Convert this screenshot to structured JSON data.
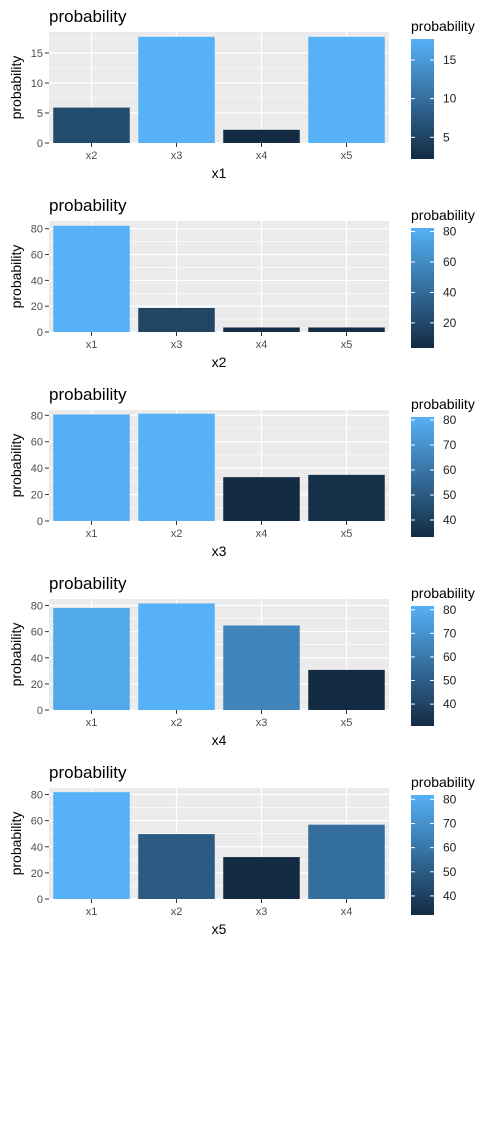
{
  "colors": {
    "panel_bg": "#EBEBEB",
    "grid": "#FFFFFF",
    "tick_text": "#4D4D4D",
    "gradient_low": "#132B43",
    "gradient_high": "#56B1F7"
  },
  "chart_data": [
    {
      "type": "bar",
      "title": "probability",
      "xlabel": "x1",
      "ylabel": "probability",
      "categories": [
        "x2",
        "x3",
        "x4",
        "x5"
      ],
      "values": [
        5.9,
        17.7,
        2.2,
        17.7
      ],
      "ylim": [
        0,
        18.5
      ],
      "yticks": [
        0,
        5,
        10,
        15
      ],
      "legend": {
        "title": "probability",
        "ticks": [
          5,
          10,
          15
        ],
        "range": [
          2.2,
          17.7
        ],
        "position": "right"
      },
      "grid": true
    },
    {
      "type": "bar",
      "title": "probability",
      "xlabel": "x2",
      "ylabel": "probability",
      "categories": [
        "x1",
        "x3",
        "x4",
        "x5"
      ],
      "values": [
        82.3,
        18.6,
        3.5,
        3.5
      ],
      "ylim": [
        0,
        86
      ],
      "yticks": [
        0,
        20,
        40,
        60,
        80
      ],
      "legend": {
        "title": "probability",
        "ticks": [
          20,
          40,
          60,
          80
        ],
        "range": [
          3.5,
          82.3
        ],
        "position": "right"
      },
      "grid": true
    },
    {
      "type": "bar",
      "title": "probability",
      "xlabel": "x3",
      "ylabel": "probability",
      "categories": [
        "x1",
        "x2",
        "x4",
        "x5"
      ],
      "values": [
        80.6,
        81.2,
        33.2,
        34.9
      ],
      "ylim": [
        0,
        84
      ],
      "yticks": [
        0,
        20,
        40,
        60,
        80
      ],
      "legend": {
        "title": "probability",
        "ticks": [
          40,
          50,
          60,
          70,
          80
        ],
        "range": [
          33.2,
          81.2
        ],
        "position": "right"
      },
      "grid": true
    },
    {
      "type": "bar",
      "title": "probability",
      "xlabel": "x4",
      "ylabel": "probability",
      "categories": [
        "x1",
        "x2",
        "x3",
        "x5"
      ],
      "values": [
        78.1,
        81.6,
        64.7,
        30.7
      ],
      "ylim": [
        0,
        85
      ],
      "yticks": [
        0,
        20,
        40,
        60,
        80
      ],
      "legend": {
        "title": "probability",
        "ticks": [
          40,
          50,
          60,
          70,
          80
        ],
        "range": [
          30.7,
          81.6
        ],
        "position": "right"
      },
      "grid": true
    },
    {
      "type": "bar",
      "title": "probability",
      "xlabel": "x5",
      "ylabel": "probability",
      "categories": [
        "x1",
        "x2",
        "x3",
        "x4"
      ],
      "values": [
        81.8,
        49.7,
        32.1,
        56.9
      ],
      "ylim": [
        0,
        85
      ],
      "yticks": [
        0,
        20,
        40,
        60,
        80
      ],
      "legend": {
        "title": "probability",
        "ticks": [
          40,
          50,
          60,
          70,
          80
        ],
        "range": [
          32.1,
          81.8
        ],
        "position": "right"
      },
      "grid": true
    }
  ]
}
